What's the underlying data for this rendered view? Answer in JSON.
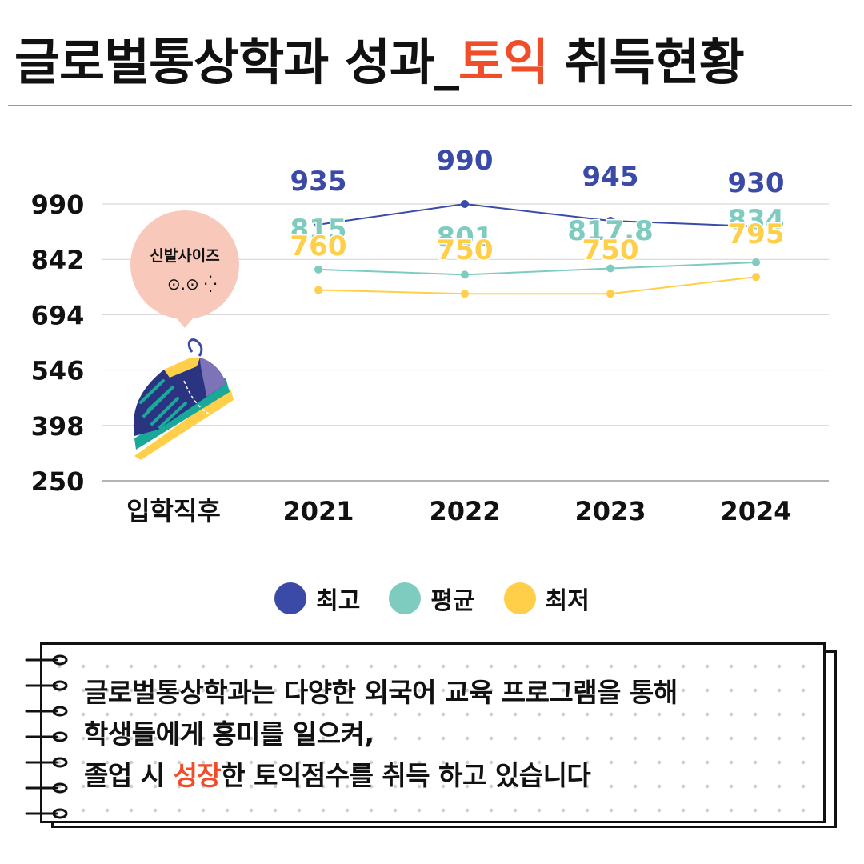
{
  "title": {
    "before": "글로벌통상학과 성과_",
    "highlight": "토익",
    "after": " 취득현황"
  },
  "bubble": {
    "text": "신발사이즈",
    "face": "⊙.⊙ ⁛"
  },
  "colors": {
    "max": "#3a4aa6",
    "avg": "#7ecbc0",
    "min": "#ffcf4a",
    "accent": "#f04e2a",
    "bubble": "#f8c9bb"
  },
  "chart_data": {
    "type": "line",
    "categories": [
      "입학직후",
      "2021",
      "2022",
      "2023",
      "2024"
    ],
    "y_ticks": [
      "990",
      "842",
      "694",
      "546",
      "398",
      "250"
    ],
    "ylim": [
      250,
      990
    ],
    "grid": true,
    "series": [
      {
        "name": "최고",
        "values": [
          null,
          935,
          990,
          945,
          930
        ]
      },
      {
        "name": "평균",
        "values": [
          null,
          815,
          801,
          817.8,
          834
        ]
      },
      {
        "name": "최저",
        "values": [
          null,
          760,
          750,
          750,
          795
        ]
      }
    ],
    "data_labels": {
      "최고": [
        "",
        "935",
        "990",
        "945",
        "930"
      ],
      "평균": [
        "",
        "815",
        "801",
        "817.8",
        "834"
      ],
      "최저": [
        "",
        "760",
        "750",
        "750",
        "795"
      ]
    }
  },
  "legend": [
    "최고",
    "평균",
    "최저"
  ],
  "note": {
    "line1": "글로벌통상학과는 다양한 외국어 교육 프로그램을 통해",
    "line2": "학생들에게 흥미를 일으켜,",
    "line3_before": "졸업 시 ",
    "line3_highlight": "성장",
    "line3_after": "한 토익점수를 취득 하고 있습니다"
  }
}
